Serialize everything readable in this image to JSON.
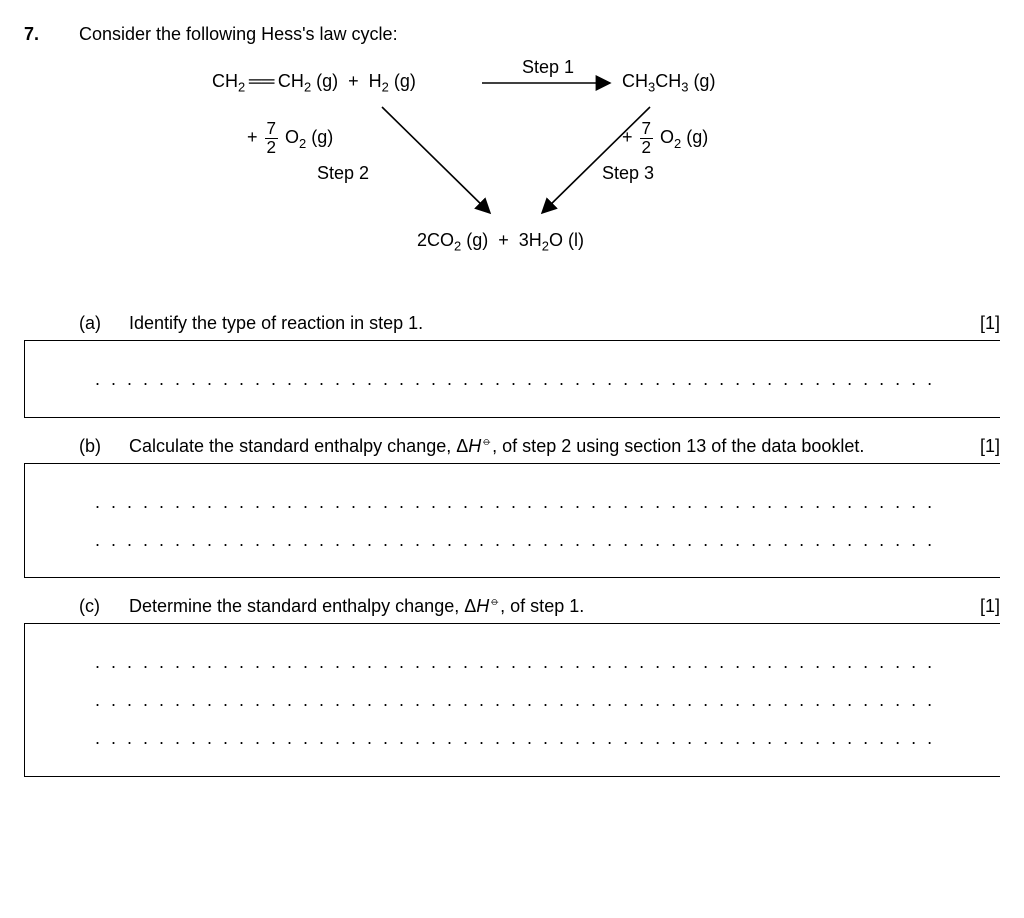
{
  "question_number": "7.",
  "intro": "Consider the following Hess's law cycle:",
  "diagram": {
    "top_left_html": "CH<sub>2</sub>&#8201;&#9552;&#9552;&#8201;CH<sub>2</sub> (g)&nbsp;&nbsp;+&nbsp;&nbsp;H<sub>2</sub> (g)",
    "top_right_html": "CH<sub>3</sub>CH<sub>3</sub> (g)",
    "step1_label": "Step 1",
    "step2_label": "Step 2",
    "step3_label": "Step 3",
    "step2_reagent_html": "+ <span class=\"frac\"><span class=\"fn\">7</span><span class=\"fd\">2</span></span> O<sub>2</sub> (g)",
    "step3_reagent_html": "+ <span class=\"frac\"><span class=\"fn\">7</span><span class=\"fd\">2</span></span> O<sub>2</sub> (g)",
    "bottom_html": "2CO<sub>2</sub> (g)&nbsp;&nbsp;+&nbsp;&nbsp;3H<sub>2</sub>O (l)"
  },
  "parts": {
    "a": {
      "letter": "(a)",
      "text": "Identify the type of reaction in step 1.",
      "marks": "[1]",
      "lines": 1
    },
    "b": {
      "letter": "(b)",
      "text_html": "Calculate the standard enthalpy change, &Delta;<i>H</i><sup>&#10677;</sup>, of step 2 using section 13 of the data booklet.",
      "marks": "[1]",
      "lines": 2
    },
    "c": {
      "letter": "(c)",
      "text_html": "Determine the standard enthalpy change, &Delta;<i>H</i><sup>&#10677;</sup>, of step 1.",
      "marks": "[1]",
      "lines": 3
    }
  },
  "style": {
    "font_size_pt": 18,
    "text_color": "#000000",
    "background_color": "#ffffff",
    "box_border_color": "#000000"
  }
}
